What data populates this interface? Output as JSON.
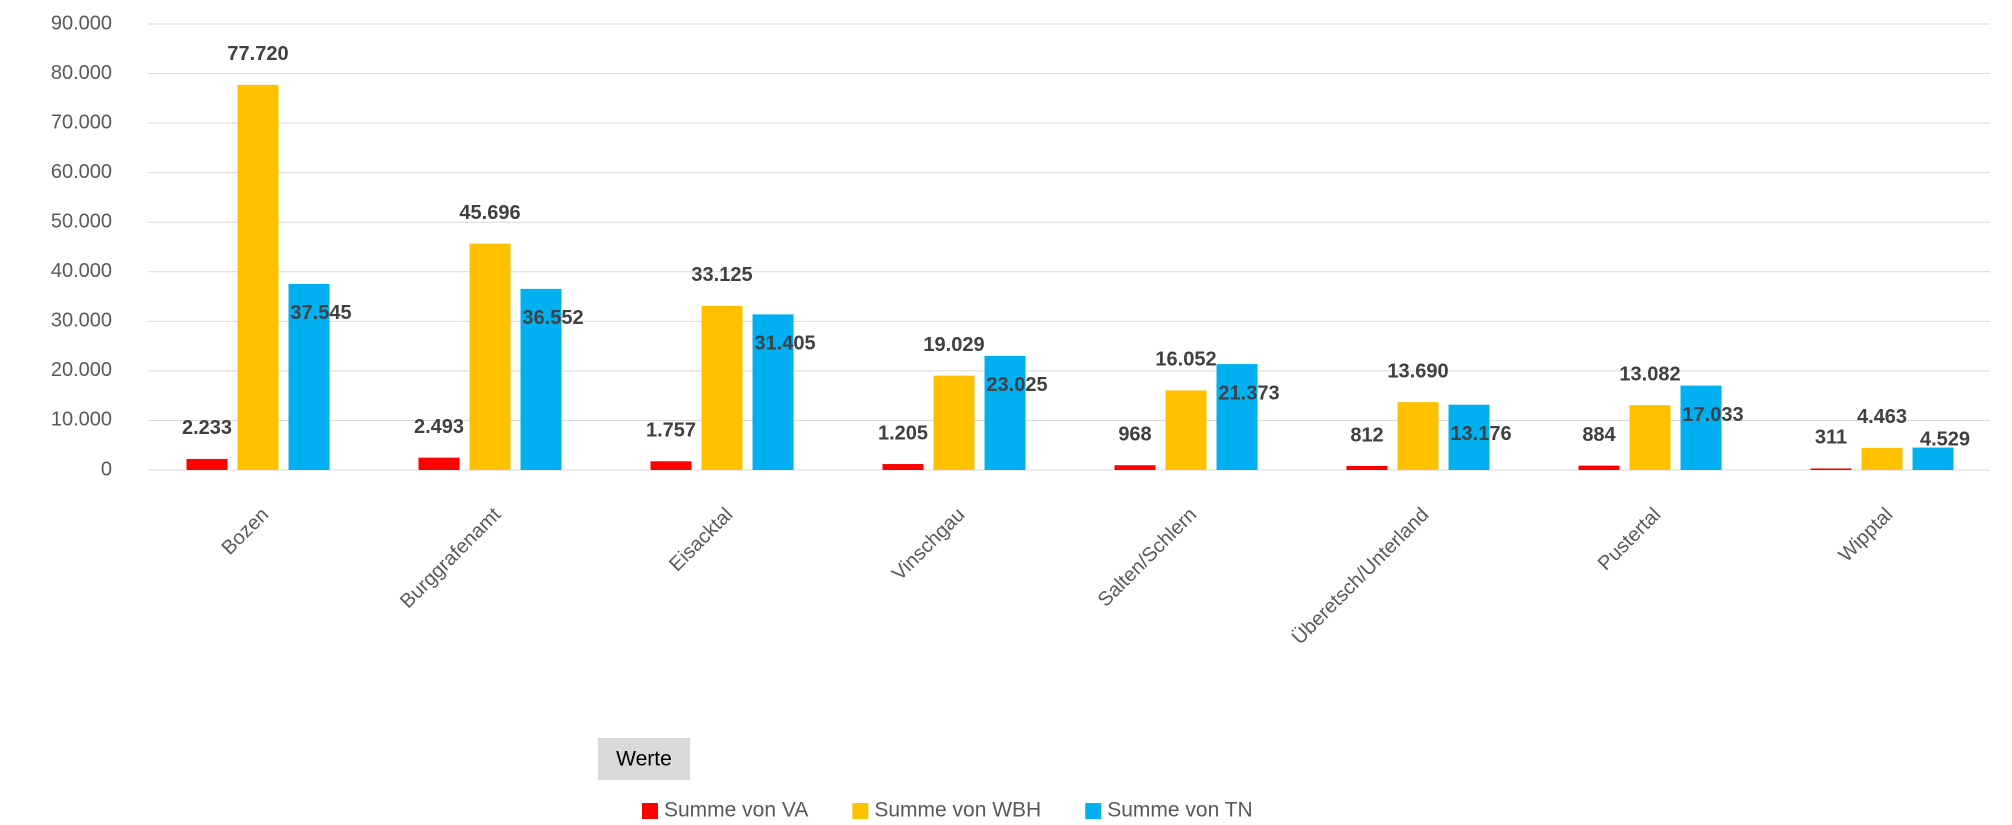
{
  "chart_data": {
    "type": "bar",
    "categories": [
      "Bozen",
      "Burggrafenamt",
      "Eisacktal",
      "Vinschgau",
      "Salten/Schlern",
      "Überetsch/Unterland",
      "Pustertal",
      "Wipptal"
    ],
    "series": [
      {
        "name": "Summe von VA",
        "color": "#ff0000",
        "values": [
          2233,
          2493,
          1757,
          1205,
          968,
          812,
          884,
          311
        ],
        "value_labels": [
          "2.233",
          "2.493",
          "1.757",
          "1.205",
          "968",
          "812",
          "884",
          "311"
        ]
      },
      {
        "name": "Summe von WBH",
        "color": "#ffc000",
        "values": [
          77720,
          45696,
          33125,
          19029,
          16052,
          13690,
          13082,
          4463
        ],
        "value_labels": [
          "77.720",
          "45.696",
          "33.125",
          "19.029",
          "16.052",
          "13.690",
          "13.082",
          "4.463"
        ]
      },
      {
        "name": "Summe von TN",
        "color": "#00b0f0",
        "values": [
          37545,
          36552,
          31405,
          23025,
          21373,
          13176,
          17033,
          4529
        ],
        "value_labels": [
          "37.545",
          "36.552",
          "31.405",
          "23.025",
          "21.373",
          "13.176",
          "17.033",
          "4.529"
        ]
      }
    ],
    "ylim": [
      0,
      90000
    ],
    "yticks": [
      0,
      {
        "value": 10000,
        "label": "10.000"
      },
      {
        "value": 20000,
        "label": "20.000"
      },
      {
        "value": 30000,
        "label": "30.000"
      },
      {
        "value": 40000,
        "label": "40.000"
      },
      {
        "value": 50000,
        "label": "50.000"
      },
      {
        "value": 60000,
        "label": "60.000"
      },
      {
        "value": 70000,
        "label": "70.000"
      },
      {
        "value": 80000,
        "label": "80.000"
      },
      {
        "value": 90000,
        "label": "90.000"
      }
    ],
    "grid": true,
    "legend": "bottom",
    "field_button": "Werte"
  }
}
